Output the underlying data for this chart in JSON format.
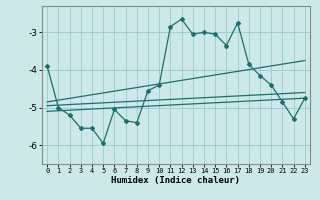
{
  "xlabel": "Humidex (Indice chaleur)",
  "background_color": "#cce8e8",
  "grid_color": "#99cccc",
  "line_color": "#1a7070",
  "xlim": [
    -0.5,
    23.5
  ],
  "ylim": [
    -6.5,
    -2.3
  ],
  "yticks": [
    -6,
    -5,
    -4,
    -3
  ],
  "xticks": [
    0,
    1,
    2,
    3,
    4,
    5,
    6,
    7,
    8,
    9,
    10,
    11,
    12,
    13,
    14,
    15,
    16,
    17,
    18,
    19,
    20,
    21,
    22,
    23
  ],
  "series1_x": [
    0,
    1,
    2,
    3,
    4,
    5,
    6,
    7,
    8,
    9,
    10,
    11,
    12,
    13,
    14,
    15,
    16,
    17,
    18,
    19,
    20,
    21,
    22,
    23
  ],
  "series1_y": [
    -3.9,
    -5.0,
    -5.2,
    -5.55,
    -5.55,
    -5.95,
    -5.05,
    -5.35,
    -5.4,
    -4.55,
    -4.4,
    -2.85,
    -2.65,
    -3.05,
    -3.0,
    -3.05,
    -3.35,
    -2.75,
    -3.85,
    -4.15,
    -4.4,
    -4.85,
    -5.3,
    -4.75
  ],
  "series2_x": [
    0,
    23
  ],
  "series2_y": [
    -4.85,
    -3.75
  ],
  "series3_x": [
    0,
    23
  ],
  "series3_y": [
    -4.95,
    -4.6
  ],
  "series4_x": [
    0,
    23
  ],
  "series4_y": [
    -5.1,
    -4.75
  ]
}
